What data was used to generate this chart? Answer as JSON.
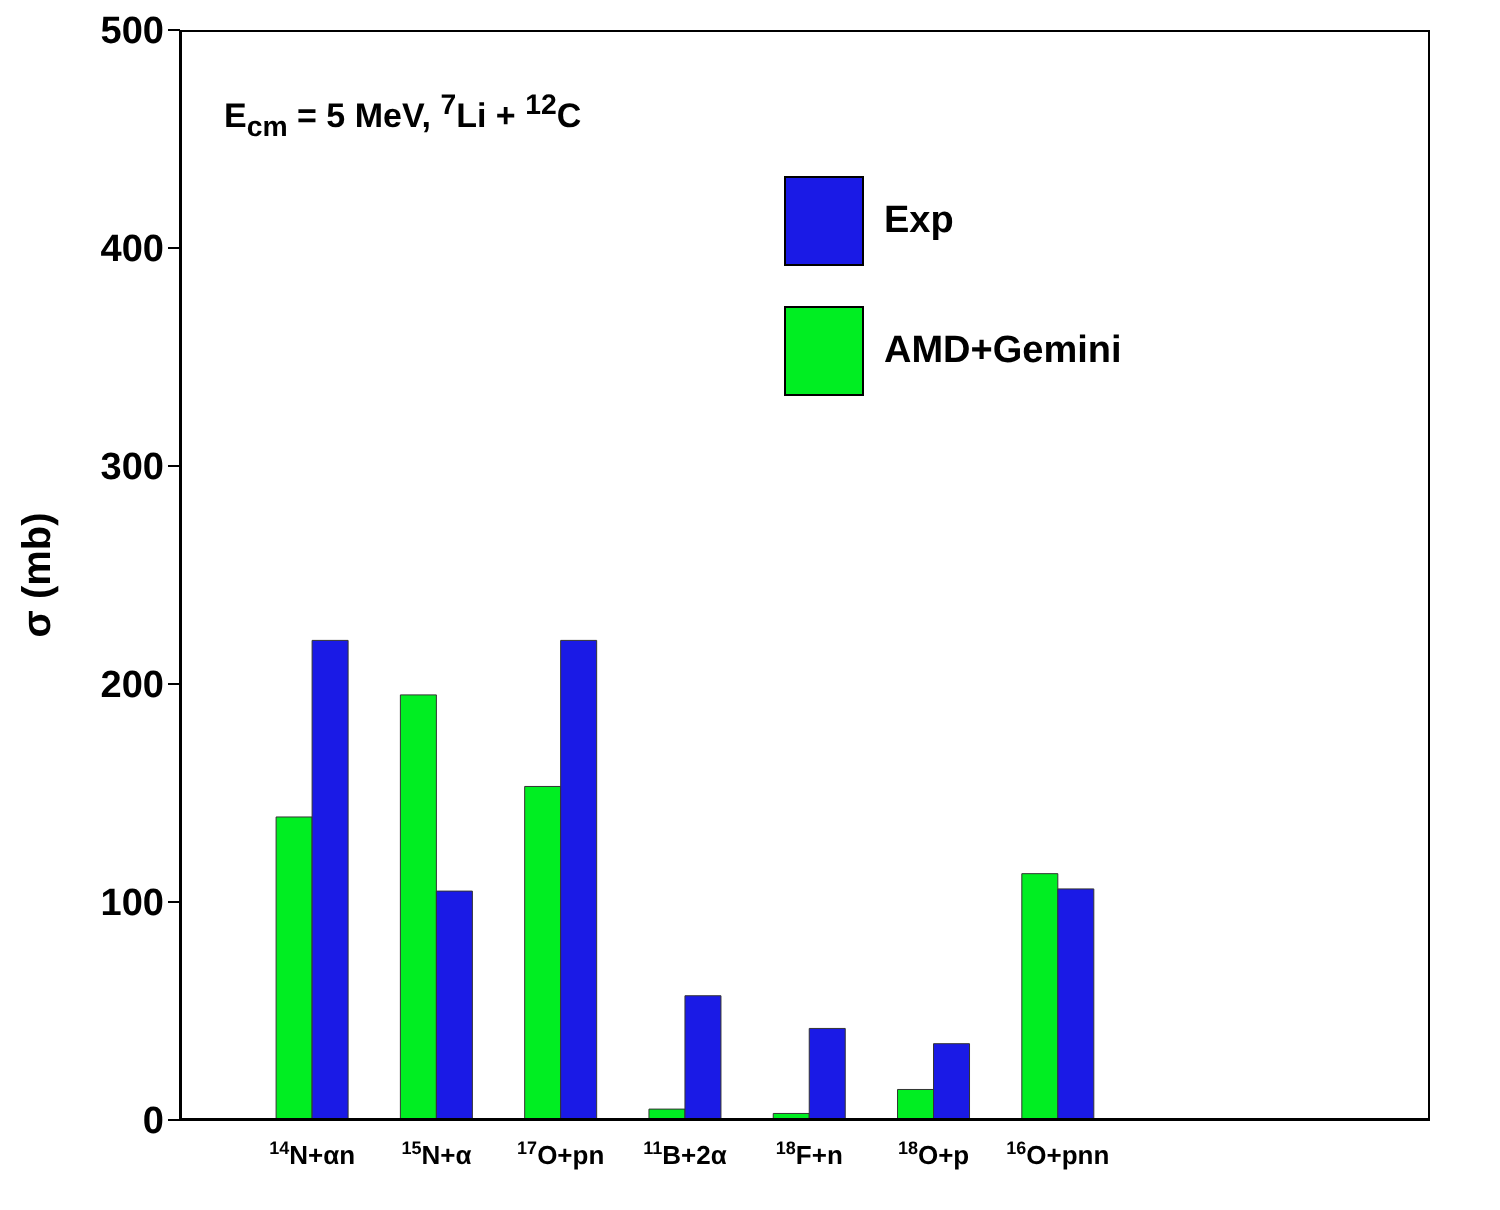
{
  "chart_data": {
    "type": "bar",
    "ylabel": "σ (mb)",
    "annotations": [
      "E$_{cm}$ = 5 MeV, $^{7}$Li + $^{12}$C"
    ],
    "categories": [
      "$^{14}$N+αn",
      "$^{15}$N+α",
      "$^{17}$O+pn",
      "$^{11}$B+2α",
      "$^{18}$F+n",
      "$^{18}$O+p",
      "$^{16}$O+pnn"
    ],
    "series": [
      {
        "name": "AMD+Gemini",
        "color": "#00ee22",
        "values": [
          139,
          195,
          153,
          5,
          3,
          14,
          113
        ]
      },
      {
        "name": "Exp",
        "color": "#1a1ae6",
        "values": [
          220,
          105,
          220,
          57,
          42,
          35,
          106
        ]
      }
    ],
    "ylim": [
      0,
      500
    ],
    "yticks": [
      0,
      100,
      200,
      300,
      400,
      500
    ],
    "legend": "top right"
  }
}
